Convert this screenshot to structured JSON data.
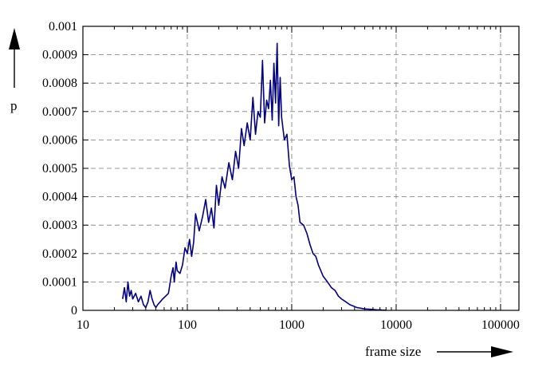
{
  "chart_data": {
    "type": "line",
    "xscale": "log",
    "xlim": [
      10,
      150000
    ],
    "ylim": [
      0,
      0.001
    ],
    "xlabel": "frame size",
    "ylabel": "p",
    "grid": true,
    "x_ticks": [
      {
        "value": 10,
        "label": "10"
      },
      {
        "value": 100,
        "label": "100"
      },
      {
        "value": 1000,
        "label": "1000"
      },
      {
        "value": 10000,
        "label": "10000"
      },
      {
        "value": 100000,
        "label": "100000"
      }
    ],
    "y_ticks": [
      {
        "value": 0,
        "label": "0"
      },
      {
        "value": 0.0001,
        "label": "0.0001"
      },
      {
        "value": 0.0002,
        "label": "0.0002"
      },
      {
        "value": 0.0003,
        "label": "0.0003"
      },
      {
        "value": 0.0004,
        "label": "0.0004"
      },
      {
        "value": 0.0005,
        "label": "0.0005"
      },
      {
        "value": 0.0006,
        "label": "0.0006"
      },
      {
        "value": 0.0007,
        "label": "0.0007"
      },
      {
        "value": 0.0008,
        "label": "0.0008"
      },
      {
        "value": 0.0009,
        "label": "0.0009"
      },
      {
        "value": 0.001,
        "label": "0.001"
      }
    ],
    "series": [
      {
        "color": "#000080",
        "x": [
          24,
          25,
          26,
          27,
          28,
          29,
          30,
          32,
          34,
          36,
          38,
          40,
          42,
          44,
          46,
          48,
          50,
          52,
          55,
          58,
          62,
          66,
          70,
          73,
          75,
          78,
          80,
          85,
          90,
          95,
          100,
          105,
          110,
          115,
          120,
          130,
          140,
          150,
          160,
          170,
          180,
          190,
          200,
          215,
          230,
          250,
          270,
          290,
          310,
          330,
          350,
          375,
          400,
          425,
          450,
          475,
          500,
          525,
          550,
          575,
          600,
          625,
          650,
          675,
          700,
          725,
          750,
          775,
          800,
          850,
          900,
          950,
          1000,
          1050,
          1100,
          1150,
          1200,
          1300,
          1400,
          1500,
          1600,
          1700,
          1800,
          1900,
          2000,
          2200,
          2400,
          2600,
          2800,
          3000,
          3300,
          3600,
          3900,
          4200,
          4500,
          5000,
          5500,
          6000,
          6500,
          7000,
          7500,
          8000
        ],
        "y": [
          4e-05,
          8e-05,
          3e-05,
          0.0001,
          5e-05,
          7e-05,
          4e-05,
          6e-05,
          3e-05,
          5e-05,
          2e-05,
          1e-05,
          3e-05,
          7e-05,
          4e-05,
          2e-05,
          1e-05,
          2e-05,
          3e-05,
          4e-05,
          5e-05,
          6e-05,
          0.00012,
          0.00015,
          0.0001,
          0.00017,
          0.00014,
          0.00013,
          0.00016,
          0.00022,
          0.0002,
          0.00025,
          0.00019,
          0.00024,
          0.00034,
          0.00028,
          0.00033,
          0.00039,
          0.00031,
          0.00036,
          0.00029,
          0.00044,
          0.00037,
          0.00047,
          0.00043,
          0.00052,
          0.00046,
          0.00056,
          0.0005,
          0.00064,
          0.00058,
          0.00066,
          0.0006,
          0.00075,
          0.00062,
          0.0007,
          0.00068,
          0.00088,
          0.00066,
          0.00074,
          0.00071,
          0.00081,
          0.00067,
          0.00087,
          0.00073,
          0.00094,
          0.00065,
          0.00082,
          0.00068,
          0.0006,
          0.00062,
          0.00051,
          0.00046,
          0.00047,
          0.0004,
          0.00037,
          0.00031,
          0.0003,
          0.00027,
          0.00023,
          0.0002,
          0.00019,
          0.00016,
          0.00014,
          0.00012,
          0.0001,
          8e-05,
          7e-05,
          5e-05,
          4e-05,
          3e-05,
          2e-05,
          1.5e-05,
          1e-05,
          8e-06,
          5e-06,
          4e-06,
          3e-06,
          2e-06,
          1.5e-06,
          1e-06,
          5e-07
        ]
      }
    ]
  }
}
